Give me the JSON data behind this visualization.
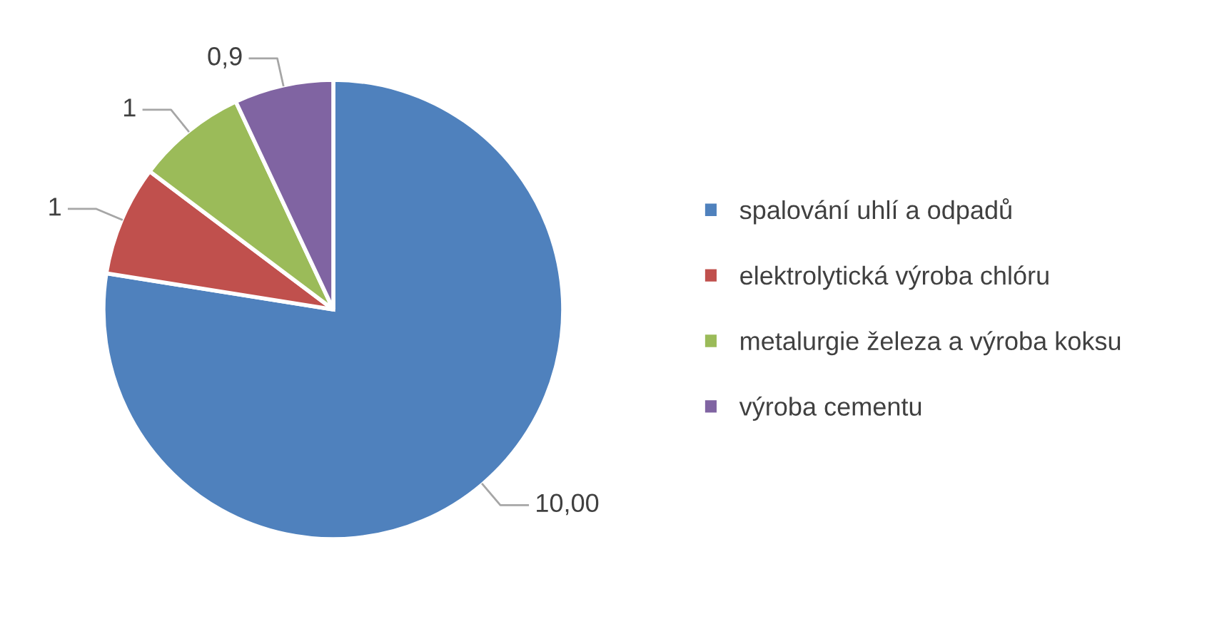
{
  "chart_data": {
    "type": "pie",
    "categories": [
      "spalování uhlí a odpadů",
      "elektrolytická výroba chlóru",
      "metalurgie železa a výroba koksu",
      "výroba cementu"
    ],
    "values": [
      10,
      1,
      1,
      0.9
    ],
    "value_labels": [
      "10,00",
      "1",
      "1",
      "0,9"
    ],
    "colors": [
      "#4f81bd",
      "#c0504d",
      "#9bbb59",
      "#8064a2"
    ],
    "legend": "right"
  }
}
